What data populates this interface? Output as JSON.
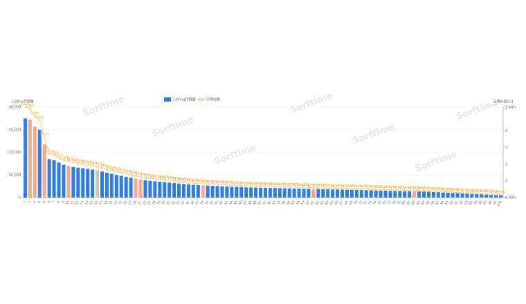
{
  "chart_data": {
    "type": "bar",
    "watermark": "Sorftime",
    "y_label": "Listing月销量",
    "y2_label": "市场份额(%)",
    "categories": [
      "1",
      "2",
      "3",
      "4",
      "5",
      "6",
      "7",
      "8",
      "9",
      "10",
      "11",
      "12",
      "13",
      "14",
      "15",
      "16",
      "17",
      "18",
      "19",
      "20",
      "21",
      "22",
      "23",
      "24",
      "25",
      "26",
      "27",
      "28",
      "29",
      "30",
      "31",
      "32",
      "33",
      "34",
      "35",
      "36",
      "37",
      "38",
      "39",
      "40",
      "41",
      "42",
      "43",
      "44",
      "45",
      "46",
      "47",
      "48",
      "49",
      "50",
      "51",
      "52",
      "53",
      "54",
      "55",
      "56",
      "57",
      "58",
      "59",
      "60",
      "61",
      "62",
      "63",
      "64",
      "65",
      "66",
      "67",
      "68",
      "69",
      "70",
      "71",
      "72",
      "73",
      "74",
      "75",
      "76",
      "77",
      "78",
      "79",
      "80",
      "81",
      "82",
      "83",
      "84",
      "85",
      "86",
      "87",
      "88",
      "89",
      "90",
      "91",
      "92",
      "93",
      "94",
      "95",
      "96",
      "97",
      "98",
      "99",
      "100"
    ],
    "series": [
      {
        "name": "Listing月销量",
        "type": "bar",
        "color": "#2f7bf0",
        "highlight": [
          {
            "color": "#f5a88e",
            "indices": [
              1,
              2,
              4,
              9,
              23,
              24,
              37,
              60,
              81
            ]
          },
          {
            "color": "#c8c8c8",
            "indices": [
              15
            ]
          }
        ],
        "values": [
          35000,
          34500,
          31500,
          30000,
          23500,
          17000,
          16500,
          15500,
          14500,
          14000,
          13500,
          13200,
          13000,
          12700,
          12400,
          12000,
          11500,
          11000,
          10500,
          10000,
          9600,
          9200,
          8800,
          8400,
          8000,
          7700,
          7400,
          7200,
          7000,
          6800,
          6600,
          6400,
          6200,
          6000,
          5800,
          5600,
          5500,
          5400,
          5300,
          5200,
          5100,
          5000,
          4900,
          4800,
          4700,
          4600,
          4500,
          4450,
          4400,
          4350,
          4300,
          4250,
          4200,
          4150,
          4100,
          4050,
          4000,
          3950,
          3900,
          3850,
          3800,
          3750,
          3700,
          3650,
          3600,
          3550,
          3500,
          3450,
          3400,
          3350,
          3300,
          3250,
          3200,
          3150,
          3100,
          3050,
          3000,
          2950,
          2900,
          2850,
          2800,
          2750,
          2700,
          2650,
          2600,
          2500,
          2400,
          2300,
          2200,
          2100,
          2000,
          1900,
          1800,
          1700,
          1600,
          1500,
          1400,
          1300,
          1200,
          1100
        ]
      },
      {
        "name": "市场份额",
        "type": "line",
        "axis": "y2",
        "color": "#f5a623",
        "values": [
          5.44,
          5.36,
          4.9,
          4.66,
          3.65,
          2.64,
          2.56,
          2.41,
          2.25,
          2.18,
          2.1,
          2.05,
          2.02,
          1.97,
          1.93,
          1.87,
          1.79,
          1.71,
          1.63,
          1.55,
          1.49,
          1.43,
          1.37,
          1.31,
          1.24,
          1.2,
          1.15,
          1.12,
          1.09,
          1.06,
          1.03,
          0.99,
          0.96,
          0.93,
          0.9,
          0.87,
          0.85,
          0.84,
          0.82,
          0.81,
          0.79,
          0.78,
          0.76,
          0.75,
          0.73,
          0.71,
          0.7,
          0.69,
          0.68,
          0.68,
          0.67,
          0.66,
          0.65,
          0.65,
          0.64,
          0.63,
          0.62,
          0.61,
          0.61,
          0.6,
          0.59,
          0.58,
          0.58,
          0.57,
          0.56,
          0.55,
          0.54,
          0.54,
          0.53,
          0.52,
          0.51,
          0.51,
          0.5,
          0.49,
          0.48,
          0.47,
          0.47,
          0.46,
          0.45,
          0.44,
          0.44,
          0.43,
          0.42,
          0.41,
          0.4,
          0.39,
          0.37,
          0.36,
          0.34,
          0.33,
          0.31,
          0.3,
          0.28,
          0.26,
          0.25,
          0.23,
          0.22,
          0.2,
          0.19,
          0.17
        ],
        "value_labels": [
          "5.44%",
          "5.36%",
          "4.90%",
          "4.66%",
          "3.65%",
          "2.64%",
          "2.56%",
          "2.41%",
          "2.25%",
          "2.18%",
          "2.10%",
          "2.05%",
          "2.02%",
          "1.97%",
          "1.93%",
          "1.87%",
          "1.79%",
          "1.71%",
          "1.63%",
          "1.55%",
          "1.49%",
          "1.43%",
          "1.37%",
          "1.31%",
          "1.24%",
          "1.20%",
          "1.15%",
          "1.12%",
          "1.09%",
          "1.06%",
          "1.03%",
          "0.99%",
          "0.96%",
          "0.93%",
          "0.90%",
          "0.87%",
          "0.85%",
          "0.84%",
          "0.82%",
          "0.81%",
          "0.79%",
          "0.78%",
          "0.76%",
          "0.75%",
          "0.73%",
          "0.71%",
          "0.70%",
          "0.69%",
          "0.68%",
          "0.68%",
          "0.67%",
          "0.66%",
          "0.65%",
          "0.65%",
          "0.64%",
          "0.63%",
          "0.62%",
          "0.61%",
          "0.61%",
          "0.60%",
          "0.59%",
          "0.58%",
          "0.58%",
          "0.57%",
          "0.56%",
          "0.55%",
          "0.54%",
          "0.54%",
          "0.53%",
          "0.52%",
          "0.51%",
          "0.51%",
          "0.50%",
          "0.49%",
          "0.48%",
          "0.47%",
          "0.47%",
          "0.46%",
          "0.45%",
          "0.44%",
          "0.44%",
          "0.43%",
          "0.42%",
          "0.41%",
          "0.40%",
          "0.39%",
          "0.37%",
          "0.36%",
          "0.34%",
          "0.33%",
          "0.31%",
          "0.30%",
          "0.28%",
          "0.26%",
          "0.25%",
          "0.23%",
          "0.22%",
          "0.20%",
          "0.19%",
          "0.17%"
        ]
      }
    ],
    "ylim": [
      0,
      40000
    ],
    "yticks": [
      0,
      {
        "value": 10000,
        "label": "10,000"
      },
      {
        "value": 20000,
        "label": "20,000"
      },
      {
        "value": 30000,
        "label": "30,000"
      },
      {
        "value": 40000,
        "label": "40,000"
      }
    ],
    "y2lim": [
      0,
      5.44
    ],
    "y2ticks": [
      {
        "value": 0,
        "label": "0.00%"
      },
      1,
      2,
      3,
      4,
      {
        "value": 5.44,
        "label": "5.44%"
      }
    ],
    "grid": true
  }
}
